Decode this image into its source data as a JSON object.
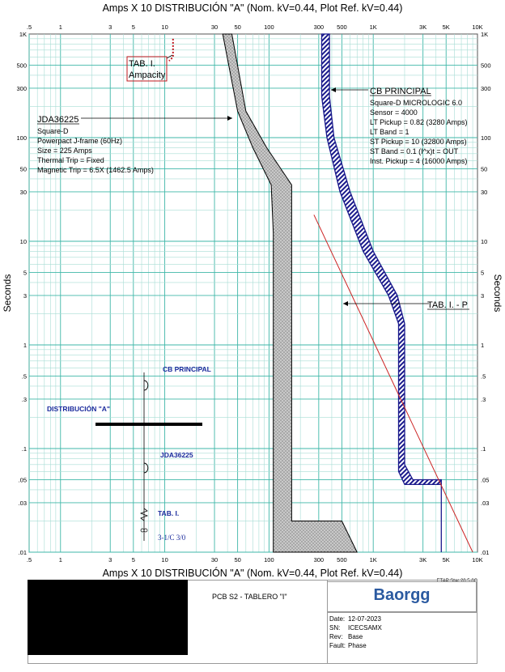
{
  "plot_title_top": "Amps  X  10   DISTRIBUCIÓN \"A\" (Nom. kV=0.44, Plot Ref. kV=0.44)",
  "plot_title_bottom": "Amps  X  10   DISTRIBUCIÓN \"A\" (Nom. kV=0.44, Plot Ref. kV=0.44)",
  "y_axis_label_left": "Seconds",
  "y_axis_label_right": "Seconds",
  "colors": {
    "grid_major": "#3fb7a8",
    "grid_minor": "#a8ddd5",
    "breaker_fill": "#1a1a8c",
    "jda_fill": "#c8c8c8",
    "cable_line": "#cc2222",
    "ampacity": "#c0181f"
  },
  "chart_data": {
    "type": "diagram",
    "x_scale": "log",
    "y_scale": "log",
    "x_range": [
      0.5,
      10000
    ],
    "y_range": [
      0.01,
      1000
    ],
    "x_tick_labels": [
      ".5",
      "1",
      "3",
      "5",
      "10",
      "30",
      "50",
      "100",
      "300",
      "500",
      "1K",
      "3K",
      "5K",
      "10K"
    ],
    "y_tick_labels": [
      "1K",
      "500",
      "300",
      "100",
      "50",
      "30",
      "10",
      "5",
      "3",
      "1",
      ".5",
      ".3",
      ".1",
      ".05",
      ".03",
      ".01"
    ],
    "jda36225": {
      "left": [
        [
          36,
          1000
        ],
        [
          50,
          180
        ],
        [
          70,
          80
        ],
        [
          105,
          35
        ],
        [
          110,
          12
        ],
        [
          110,
          0.01
        ]
      ],
      "right": [
        [
          44,
          1000
        ],
        [
          60,
          180
        ],
        [
          95,
          80
        ],
        [
          165,
          35
        ],
        [
          165,
          0.02
        ],
        [
          500,
          0.02
        ],
        [
          700,
          0.01
        ]
      ]
    },
    "cb_principal": {
      "left": [
        [
          320,
          1000
        ],
        [
          320,
          250
        ],
        [
          360,
          100
        ],
        [
          480,
          30
        ],
        [
          800,
          8
        ],
        [
          1400,
          3
        ],
        [
          1750,
          1.6
        ],
        [
          1750,
          0.06
        ],
        [
          2000,
          0.045
        ],
        [
          4500,
          0.045
        ]
      ],
      "right": [
        [
          380,
          1000
        ],
        [
          380,
          250
        ],
        [
          420,
          100
        ],
        [
          600,
          30
        ],
        [
          1000,
          8
        ],
        [
          1700,
          3
        ],
        [
          2000,
          1.6
        ],
        [
          2000,
          0.07
        ],
        [
          2400,
          0.05
        ],
        [
          4500,
          0.05
        ],
        [
          4500,
          0.01
        ]
      ]
    },
    "cable_damage": [
      [
        270,
        18
      ],
      [
        9000,
        0.01
      ]
    ],
    "ampacity": [
      [
        12,
        900
      ],
      [
        12,
        600
      ],
      [
        11,
        550
      ]
    ]
  },
  "annotations": {
    "tab_label": "TAB. I.",
    "ampacity_label": "Ampacity",
    "jda_title": "JDA36225",
    "jda_lines": [
      "Square-D",
      "Powerpact J-frame (60Hz)",
      "Size = 225 Amps",
      "Thermal Trip = Fixed",
      "Magnetic Trip = 6.5X (1462.5 Amps)"
    ],
    "cb_title": "CB PRINCIPAL",
    "cb_lines": [
      "Square-D  MICROLOGIC 6.0",
      "Sensor = 4000",
      "LT Pickup = 0.82 (3280 Amps)",
      "LT Band = 1",
      "ST Pickup = 10 (32800 Amps)",
      "ST Band = 0.1  (I^x)t = OUT",
      "Inst. Pickup = 4 (16000 Amps)"
    ],
    "tabp_label": "TAB. I. - P"
  },
  "oneline": {
    "cb_principal": "CB PRINCIPAL",
    "bus": "DISTRIBUCIÓN \"A\"",
    "jda": "JDA36225",
    "tab": "TAB. I.",
    "cable": "3-1/C 3/0"
  },
  "title_block": {
    "version": "ETAP Star 20.5.0C",
    "project": "PCB S2 - TABLERO \"I\"",
    "logo": "Baorgg",
    "date_label": "Date:",
    "date": "12-07-2023",
    "sn_label": "SN:",
    "sn": "ICECSAMX",
    "rev_label": "Rev:",
    "rev": "Base",
    "fault_label": "Fault:",
    "fault": "Phase"
  }
}
